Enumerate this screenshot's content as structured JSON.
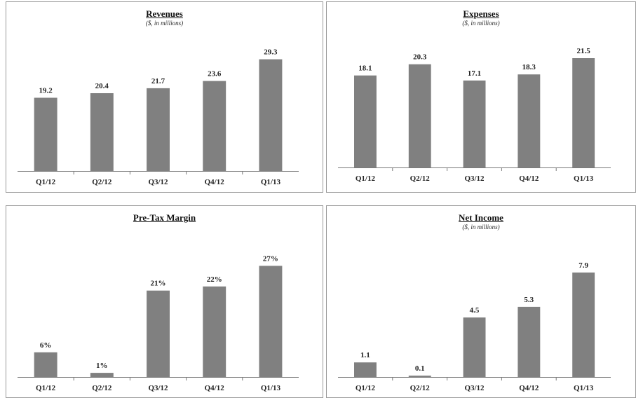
{
  "chart_data": [
    {
      "type": "bar",
      "title": "Revenues",
      "subtitle": "($, in millions)",
      "categories": [
        "Q1/12",
        "Q2/12",
        "Q3/12",
        "Q4/12",
        "Q1/13"
      ],
      "values": [
        19.2,
        20.4,
        21.7,
        23.6,
        29.3
      ],
      "value_labels": [
        "19.2",
        "20.4",
        "21.7",
        "23.6",
        "29.3"
      ],
      "ylim": [
        0,
        34
      ],
      "color": "#808080"
    },
    {
      "type": "bar",
      "title": "Expenses",
      "subtitle": "($, in millions)",
      "categories": [
        "Q1/12",
        "Q2/12",
        "Q3/12",
        "Q4/12",
        "Q1/13"
      ],
      "values": [
        18.1,
        20.3,
        17.1,
        18.3,
        21.5
      ],
      "value_labels": [
        "18.1",
        "20.3",
        "17.1",
        "18.3",
        "21.5"
      ],
      "ylim": [
        0,
        25.5
      ],
      "color": "#808080"
    },
    {
      "type": "bar",
      "title": "Pre-Tax Margin",
      "subtitle": "",
      "categories": [
        "Q1/12",
        "Q2/12",
        "Q3/12",
        "Q4/12",
        "Q1/13"
      ],
      "values": [
        6,
        1,
        21,
        22,
        27
      ],
      "value_labels": [
        "6%",
        "1%",
        "21%",
        "22%",
        "27%"
      ],
      "ylim": [
        0,
        31.5
      ],
      "color": "#808080"
    },
    {
      "type": "bar",
      "title": "Net Income",
      "subtitle": "($, in millions)",
      "categories": [
        "Q1/12",
        "Q2/12",
        "Q3/12",
        "Q4/12",
        "Q1/13"
      ],
      "values": [
        1.1,
        0.1,
        4.5,
        5.3,
        7.9
      ],
      "value_labels": [
        "1.1",
        "0.1",
        "4.5",
        "5.3",
        "7.9"
      ],
      "ylim": [
        0,
        9.8
      ],
      "color": "#808080"
    }
  ]
}
